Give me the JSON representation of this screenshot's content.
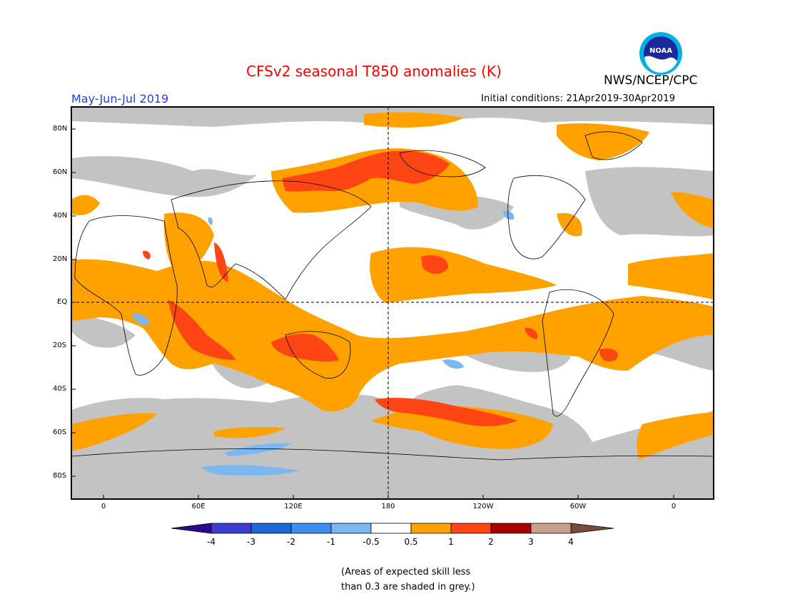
{
  "title": "CFSv2 seasonal T850 anomalies (K)",
  "agency": "NWS/NCEP/CPC",
  "logo_text": "NOAA",
  "period": "May-Jun-Jul 2019",
  "initial_conditions": "Initial conditions: 21Apr2019-30Apr2019",
  "lat_labels": [
    "80N",
    "60N",
    "40N",
    "20N",
    "EQ",
    "20S",
    "40S",
    "60S",
    "80S"
  ],
  "lon_labels": [
    "0",
    "60E",
    "120E",
    "180",
    "120W",
    "60W",
    "0"
  ],
  "colorbar": {
    "labels": [
      "-4",
      "-3",
      "-2",
      "-1",
      "-0.5",
      "0.5",
      "1",
      "2",
      "3",
      "4"
    ],
    "colors": [
      "#2b0a8c",
      "#3c3ccf",
      "#1f67d6",
      "#3d8ef0",
      "#7cb8f0",
      "#ffffff",
      "#ffa200",
      "#ff4514",
      "#a80000",
      "#c9a08c",
      "#7a4a3a"
    ]
  },
  "colors": {
    "skill_grey": "#c3c3c3",
    "warm_05_1": "#ffa200",
    "warm_1_2": "#ff4514",
    "warm_2_3": "#a80000",
    "cool_05_1": "#7cb8f0",
    "title": "#ff0000",
    "period": "#1f3bff"
  },
  "note_lines": [
    "(Areas of expected skill less",
    "than 0.3 are shaded in grey.)"
  ]
}
